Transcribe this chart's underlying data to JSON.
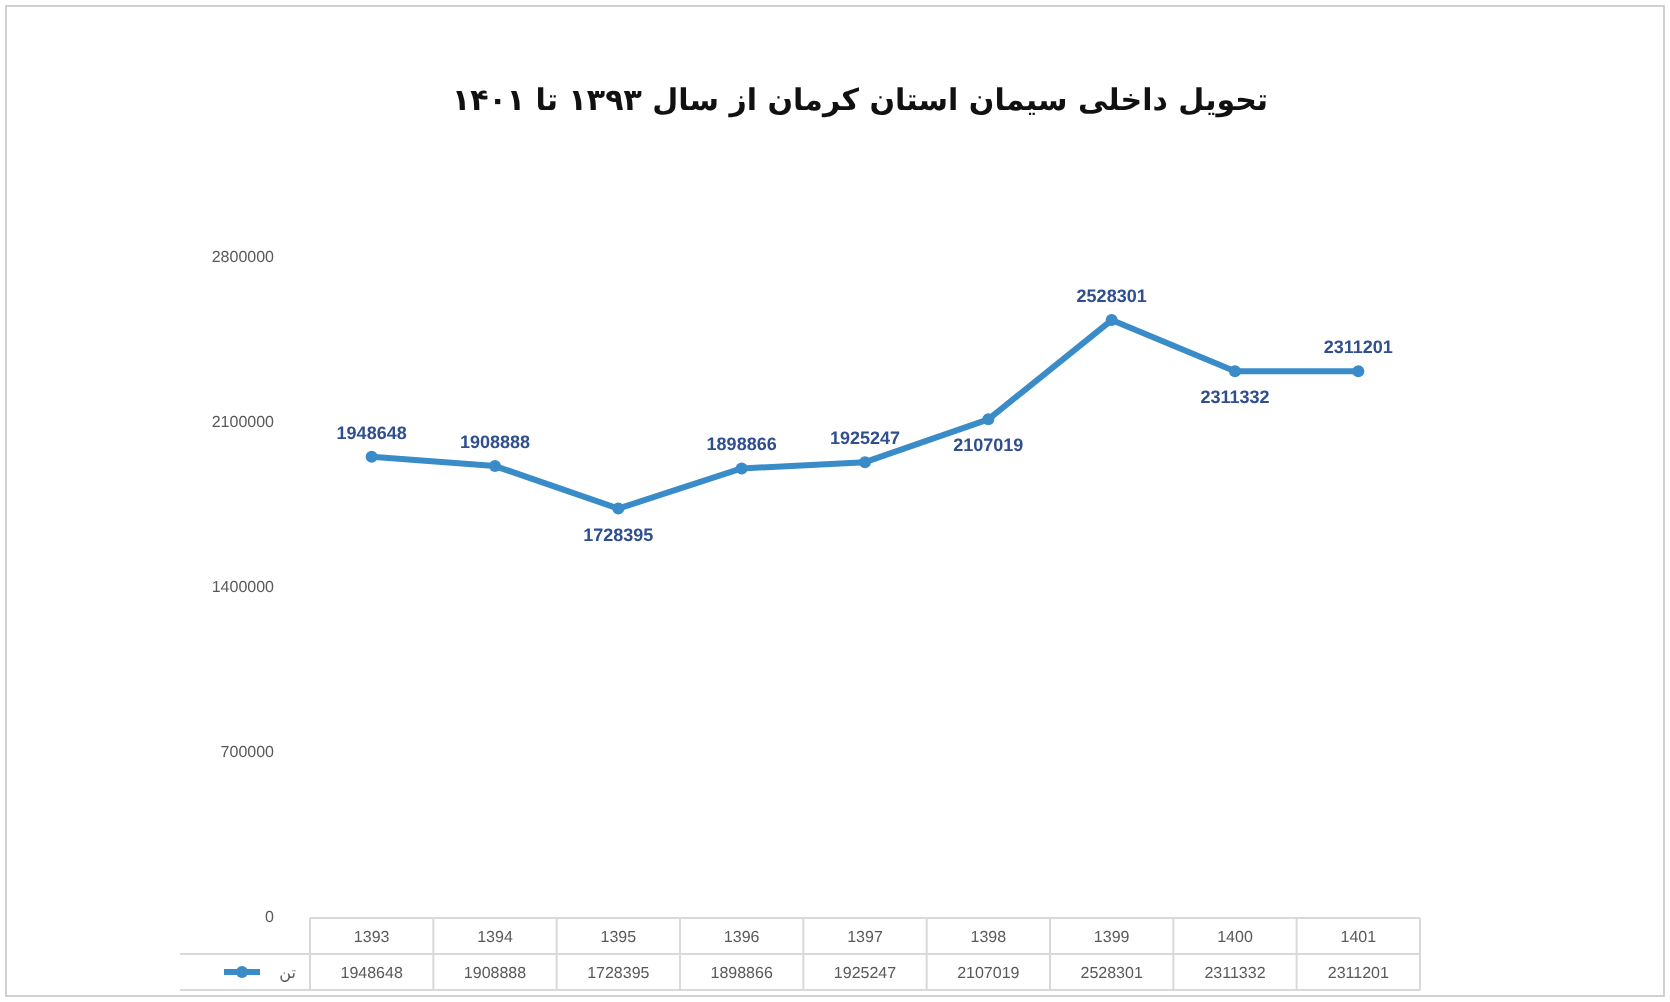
{
  "chart_data": {
    "type": "line",
    "title": "تحویل داخلی سیمان  استان کرمان از سال ۱۳۹۳ تا ۱۴۰۱",
    "categories": [
      "1393",
      "1394",
      "1395",
      "1396",
      "1397",
      "1398",
      "1399",
      "1400",
      "1401"
    ],
    "series": [
      {
        "name": "تن",
        "color": "#3a8cc8",
        "values": [
          1948648,
          1908888,
          1728395,
          1898866,
          1925247,
          2107019,
          2528301,
          2311332,
          2311201
        ],
        "value_labels": [
          "1948648",
          "1908888",
          "1728395",
          "1898866",
          "1925247",
          "2107019",
          "2528301",
          "2311332",
          "2311201"
        ]
      }
    ],
    "ylim": [
      0,
      2800000
    ],
    "yticks": [
      0,
      700000,
      1400000,
      2100000,
      2800000
    ],
    "annotations": [
      "1948648",
      "1908888",
      "1728395",
      "1898866",
      "1925247",
      "2107019",
      "2528301",
      "2311332",
      "2311201"
    ],
    "grid": false,
    "legend": "bottom left",
    "marker": "circle",
    "line_style": "solid"
  }
}
